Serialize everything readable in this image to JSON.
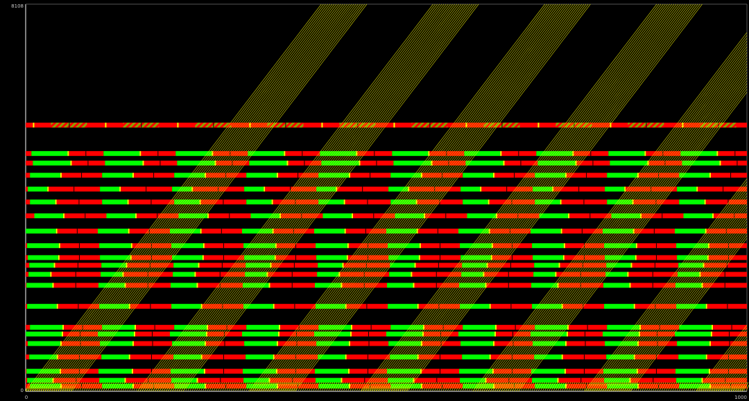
{
  "chart_data": {
    "type": "time-space diagram",
    "x_axis": {
      "range": [
        0,
        1000
      ],
      "tick_labels": [
        "0",
        "1000"
      ]
    },
    "y_axis": {
      "range": [
        0,
        8108
      ],
      "tick_labels": [
        "0",
        "8108"
      ]
    },
    "grid": false,
    "legend": "none",
    "colors": {
      "background": "#000000",
      "green_phase": "#00ff00",
      "red_phase": "#ff0000",
      "yellow_phase": "#ffff00",
      "trajectories": "#e6e600",
      "axis": "#ffffff"
    },
    "signal_cycle": 100,
    "intersections": [
      {
        "y": 5575,
        "offset": 10,
        "green": 0,
        "pattern": "striped"
      },
      {
        "y": 4980,
        "offset": 8,
        "green": 50
      },
      {
        "y": 4780,
        "offset": 10,
        "green": 52
      },
      {
        "y": 4525,
        "offset": 6,
        "green": 42
      },
      {
        "y": 4235,
        "offset": 3,
        "green": 27
      },
      {
        "y": 3965,
        "offset": 6,
        "green": 35
      },
      {
        "y": 3675,
        "offset": 12,
        "green": 40
      },
      {
        "y": 3355,
        "offset": 0,
        "green": 42
      },
      {
        "y": 3050,
        "offset": 2,
        "green": 44
      },
      {
        "y": 2800,
        "offset": 3,
        "green": 42
      },
      {
        "y": 2640,
        "offset": 5,
        "green": 34
      },
      {
        "y": 2450,
        "offset": 4,
        "green": 30
      },
      {
        "y": 2220,
        "offset": 1,
        "green": 36
      },
      {
        "y": 1780,
        "offset": 2,
        "green": 41
      },
      {
        "y": 1340,
        "offset": 6,
        "green": 45
      },
      {
        "y": 1200,
        "offset": 0,
        "green": 50
      },
      {
        "y": 1000,
        "offset": 3,
        "green": 45
      },
      {
        "y": 720,
        "offset": 5,
        "green": 38
      },
      {
        "y": 420,
        "offset": 1,
        "green": 46
      },
      {
        "y": 230,
        "offset": 2,
        "green": 35
      },
      {
        "y": 110,
        "offset": 6,
        "green": 42
      }
    ],
    "trajectory_platoons": {
      "start_times": [
        0,
        155,
        310,
        465,
        620,
        775,
        930
      ],
      "vehicles_per_platoon": 22,
      "headway": 3,
      "travel_time_full_length": 410
    }
  }
}
